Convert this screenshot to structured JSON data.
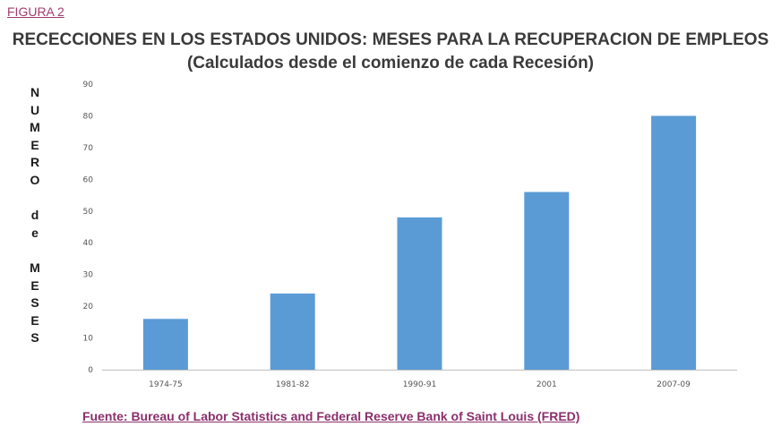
{
  "figure_label": "FIGURA 2",
  "title_line1": "RECECCIONES EN LOS ESTADOS UNIDOS: MESES PARA LA  RECUPERACION DE EMPLEOS",
  "title_line2": "(Calculados desde el comienzo de cada Recesión)",
  "ylabel_chars": [
    "N",
    "U",
    "M",
    "E",
    "R",
    "O",
    "",
    "d",
    "e",
    "",
    "M",
    "E",
    "S",
    "E",
    "S"
  ],
  "source": "Fuente: Bureau of Labor Statistics and Federal Reserve Bank of Saint Louis (FRED)",
  "colors": {
    "bar": "#5b9bd5",
    "axis": "#bfbfbf",
    "title": "#3a3a3a",
    "source": "#8a2f6c"
  },
  "chart_data": {
    "type": "bar",
    "title": "RECECCIONES EN LOS ESTADOS UNIDOS: MESES PARA LA  RECUPERACION DE EMPLEOS",
    "subtitle": "(Calculados desde el comienzo de cada Recesión)",
    "xlabel": "",
    "ylabel": "NUMERO de MESES",
    "categories": [
      "1974-75",
      "1981-82",
      "1990-91",
      "2001",
      "2007-09"
    ],
    "values": [
      16,
      24,
      48,
      56,
      80
    ],
    "ylim": [
      0,
      90
    ],
    "yticks": [
      0,
      10,
      20,
      30,
      40,
      50,
      60,
      70,
      80,
      90
    ],
    "grid": false,
    "legend": "none"
  }
}
